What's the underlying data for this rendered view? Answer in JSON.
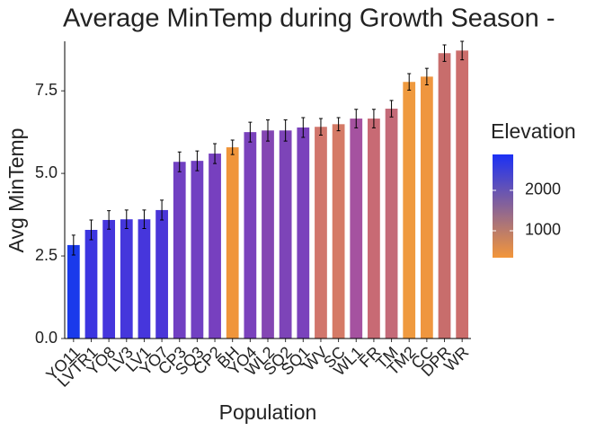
{
  "chart_data": {
    "type": "bar",
    "title": "Average MinTemp during Growth Season -",
    "x_label": "Population",
    "y_label": "Avg MinTemp",
    "categories": [
      "YO11",
      "LVTR1",
      "YO8",
      "LV3",
      "LV1",
      "YO7",
      "CP3",
      "SQ3",
      "CP2",
      "BH",
      "YO4",
      "WL2",
      "SQ2",
      "SQ1",
      "WV",
      "SC",
      "WL1",
      "FR",
      "TM",
      "TM2",
      "CC",
      "DPR",
      "WR"
    ],
    "values": [
      2.83,
      3.29,
      3.59,
      3.61,
      3.61,
      3.89,
      5.35,
      5.38,
      5.6,
      5.79,
      6.25,
      6.3,
      6.3,
      6.39,
      6.41,
      6.49,
      6.66,
      6.66,
      6.96,
      7.77,
      7.93,
      8.64,
      8.72
    ],
    "errors": [
      0.3,
      0.3,
      0.28,
      0.28,
      0.28,
      0.3,
      0.3,
      0.3,
      0.3,
      0.22,
      0.3,
      0.32,
      0.32,
      0.3,
      0.25,
      0.2,
      0.28,
      0.28,
      0.25,
      0.25,
      0.25,
      0.25,
      0.28
    ],
    "colors": [
      "#1a3aeb",
      "#3c35e0",
      "#4536dc",
      "#4536dc",
      "#4636dc",
      "#4a36d8",
      "#7140c2",
      "#7140c2",
      "#7740bf",
      "#f0953a",
      "#7a42bc",
      "#8446b3",
      "#7d44b8",
      "#7a42bc",
      "#d1766c",
      "#d57a66",
      "#a552a0",
      "#c86a74",
      "#c46a78",
      "#ef9a3f",
      "#ef963f",
      "#c86d6c",
      "#cc6e6c"
    ],
    "ylim": [
      0,
      9
    ],
    "yticks": [
      {
        "value": 0,
        "label": "0.0"
      },
      2.5,
      {
        "value": 5,
        "label": "5.0"
      },
      7.5
    ],
    "grid": false,
    "colorbar": {
      "title": "Elevation",
      "lim": [
        333,
        2889
      ],
      "ticks": [
        1000,
        2000
      ],
      "colors": [
        "#f3963a",
        "#1b30f5"
      ]
    }
  }
}
